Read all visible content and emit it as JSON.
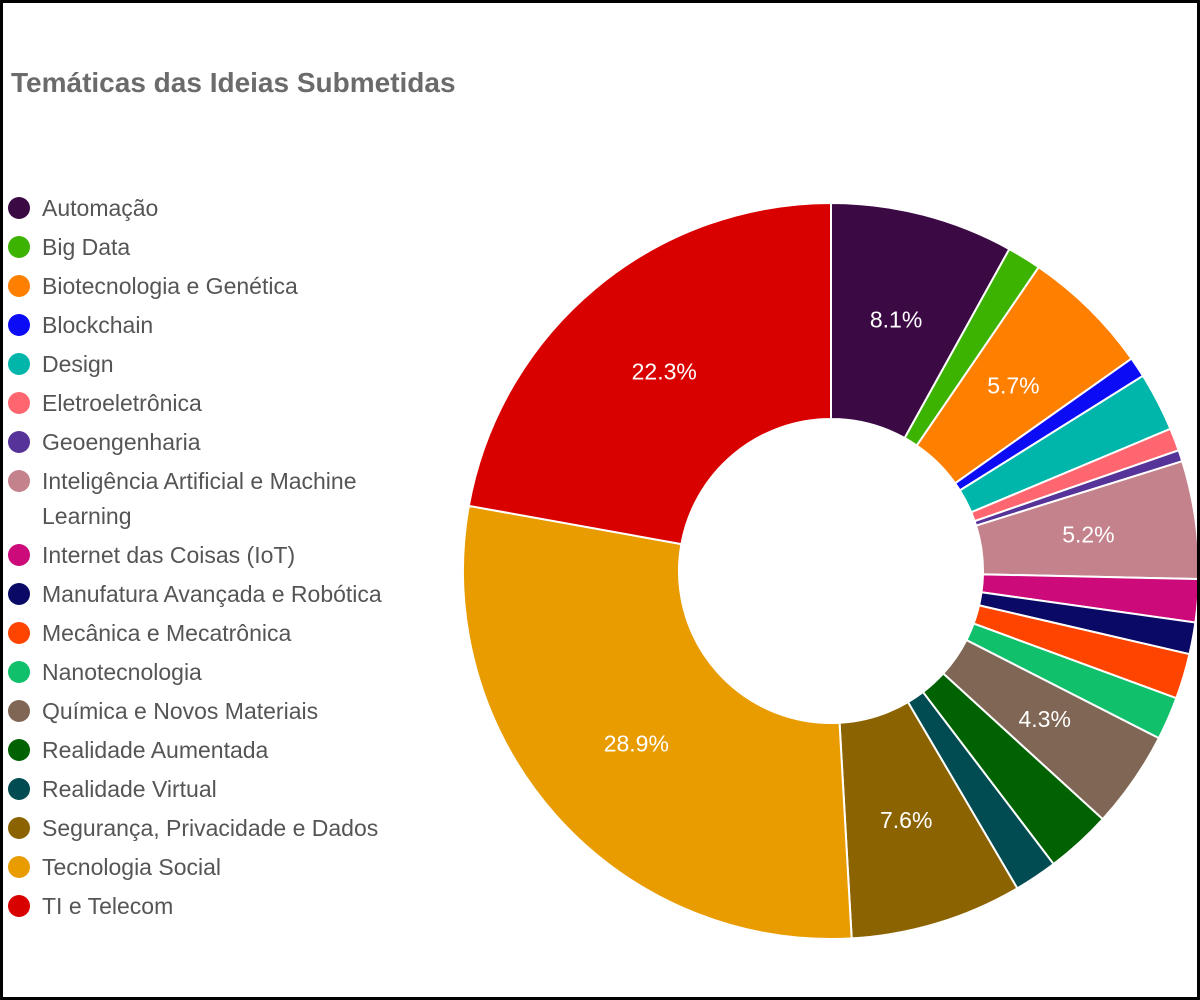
{
  "chart_data": {
    "type": "pie",
    "title": "Temáticas das Ideias Submetidas",
    "legend_position": "left",
    "donut": true,
    "slices": [
      {
        "name": "Automação",
        "value": 8.1,
        "label": "8.1%",
        "color": "#3b0a45"
      },
      {
        "name": "Big Data",
        "value": 1.5,
        "label": "",
        "color": "#3cb300"
      },
      {
        "name": "Biotecnologia e Genética",
        "value": 5.7,
        "label": "5.7%",
        "color": "#ff7f00"
      },
      {
        "name": "Blockchain",
        "value": 0.9,
        "label": "",
        "color": "#0b0bf5"
      },
      {
        "name": "Design",
        "value": 2.6,
        "label": "",
        "color": "#00b5a9"
      },
      {
        "name": "Eletroeletrônica",
        "value": 1.0,
        "label": "",
        "color": "#ff6670"
      },
      {
        "name": "Geoengenharia",
        "value": 0.5,
        "label": "",
        "color": "#553399"
      },
      {
        "name": "Inteligência Artificial e Machine Learning",
        "value": 5.2,
        "label": "5.2%",
        "color": "#c4828c"
      },
      {
        "name": "Internet das Coisas (IoT)",
        "value": 1.9,
        "label": "",
        "color": "#cc0a7a"
      },
      {
        "name": "Manufatura Avançada e Robótica",
        "value": 1.4,
        "label": "",
        "color": "#0a0a66"
      },
      {
        "name": "Mecânica e Mecatrônica",
        "value": 2.0,
        "label": "",
        "color": "#ff4400"
      },
      {
        "name": "Nanotecnologia",
        "value": 1.9,
        "label": "",
        "color": "#10c06a"
      },
      {
        "name": "Química e Novos Materiais",
        "value": 4.3,
        "label": "4.3%",
        "color": "#806654"
      },
      {
        "name": "Realidade Aumentada",
        "value": 2.9,
        "label": "",
        "color": "#006200"
      },
      {
        "name": "Realidade Virtual",
        "value": 1.9,
        "label": "",
        "color": "#004c52"
      },
      {
        "name": "Segurança, Privacidade e Dados",
        "value": 7.6,
        "label": "7.6%",
        "color": "#8b6300"
      },
      {
        "name": "Tecnologia Social",
        "value": 28.9,
        "label": "28.9%",
        "color": "#e89c00"
      },
      {
        "name": "TI e Telecom",
        "value": 22.3,
        "label": "22.3%",
        "color": "#d90000"
      }
    ]
  }
}
